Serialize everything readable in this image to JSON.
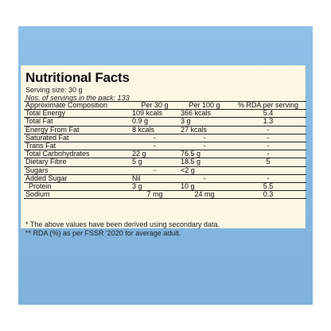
{
  "title": "Nutritional Facts",
  "serving_size": "Serving size: 30 g",
  "servings_per_pack": "Nos. of servings in the pack: 133",
  "columns": [
    "Approximate Composition",
    "Per 30 g",
    "Per 100 g",
    "% RDA per serving"
  ],
  "rows": [
    {
      "name": "Total Energy",
      "per30": "109 kcals",
      "per100": "366 kcals",
      "rda": "5.4"
    },
    {
      "name": "Total Fat",
      "per30": "0.9 g",
      "per100": "3 g",
      "rda": "1.3"
    },
    {
      "name": "Energy From Fat",
      "per30": "8 kcals",
      "per100": "27 kcals",
      "rda": "-"
    },
    {
      "name": "Saturated Fat",
      "per30": "-",
      "per100": "-",
      "rda": "-"
    },
    {
      "name": "Trans Fat",
      "per30": "-",
      "per100": "-",
      "rda": "-"
    },
    {
      "name": "Total Carbohydrates",
      "per30": "22 g",
      "per100": "76.5 g",
      "rda": "-"
    },
    {
      "name": "Dietary Fibre",
      "per30": "5 g",
      "per100": "18.5 g",
      "rda": "5"
    },
    {
      "name": "Sugars",
      "per30": "-",
      "per100": "<2 g",
      "rda": ""
    },
    {
      "name": "Added Sugar",
      "per30": "Nil",
      "per100": "-",
      "rda": "-"
    },
    {
      "name": "Protein",
      "per30": "3 g",
      "per100": "10 g",
      "rda": "5.5"
    },
    {
      "name": "Sodium",
      "per30": "7 mg",
      "per100": "24 mg",
      "rda": "0.3"
    }
  ],
  "footnote_1": "* The above values have been derived using secondary data.",
  "footnote_2": "** RDA (%) as per FSSR '2020 for average adult.",
  "colors": {
    "pack_blue": "#86b8e1",
    "label_cream": "#fbf7e4"
  }
}
